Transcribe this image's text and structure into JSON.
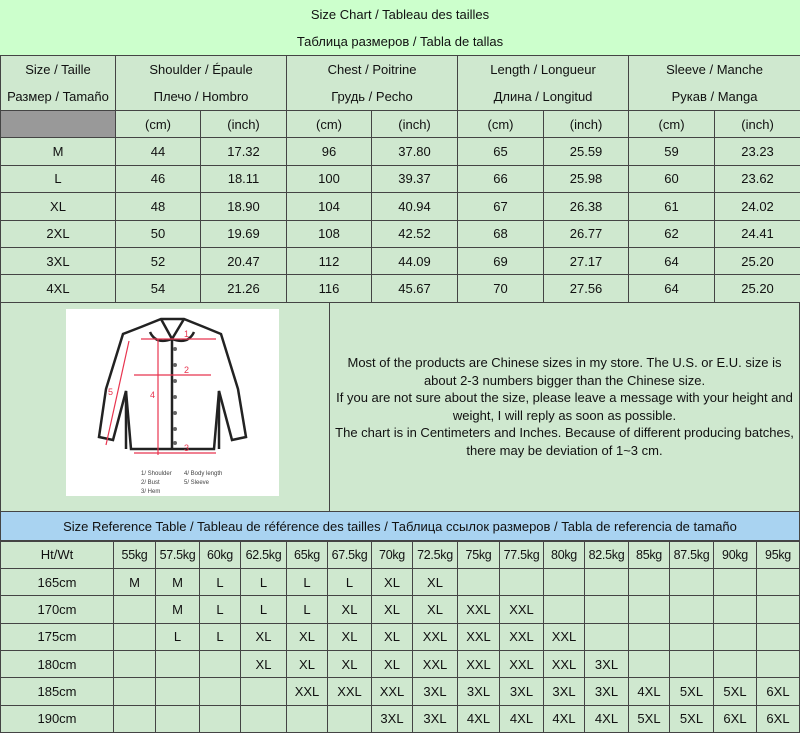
{
  "title": {
    "line1": "Size Chart / Tableau des tailles",
    "line2": "Таблица размеров / Tabla de tallas"
  },
  "headers": [
    {
      "l1": "Size / Taille",
      "l2": "Размер / Tamaño"
    },
    {
      "l1": "Shoulder / Épaule",
      "l2": "Плечо / Hombro"
    },
    {
      "l1": "Chest / Poitrine",
      "l2": "Грудь / Pecho"
    },
    {
      "l1": "Length / Longueur",
      "l2": "Длина / Longitud"
    },
    {
      "l1": "Sleeve / Manche",
      "l2": "Рукав / Manga"
    }
  ],
  "units": {
    "cm": "(cm)",
    "inch": "(inch)"
  },
  "size_rows": [
    [
      "M",
      "44",
      "17.32",
      "96",
      "37.80",
      "65",
      "25.59",
      "59",
      "23.23"
    ],
    [
      "L",
      "46",
      "18.11",
      "100",
      "39.37",
      "66",
      "25.98",
      "60",
      "23.62"
    ],
    [
      "XL",
      "48",
      "18.90",
      "104",
      "40.94",
      "67",
      "26.38",
      "61",
      "24.02"
    ],
    [
      "2XL",
      "50",
      "19.69",
      "108",
      "42.52",
      "68",
      "26.77",
      "62",
      "24.41"
    ],
    [
      "3XL",
      "52",
      "20.47",
      "112",
      "44.09",
      "69",
      "27.17",
      "64",
      "25.20"
    ],
    [
      "4XL",
      "54",
      "21.26",
      "116",
      "45.67",
      "70",
      "27.56",
      "64",
      "25.20"
    ]
  ],
  "diagram": {
    "labels": [
      "1/ Shoulder",
      "2/ Bust",
      "3/ Hem",
      "4/ Body length",
      "5/ Sleeve"
    ],
    "numbers": [
      "1",
      "2",
      "3",
      "4",
      "5"
    ],
    "accent": "#e8344f"
  },
  "description": [
    "Most of the products are Chinese sizes in my store. The U.S. or E.U. size is about 2-3 numbers bigger than the Chinese size.",
    "If you are not sure about the size, please leave a message with your height and weight, I will reply as soon as possible.",
    "The chart is in Centimeters and Inches. Because of different producing batches, there may be deviation of 1~3 cm."
  ],
  "reference": {
    "title": "Size Reference Table / Tableau de référence des tailles / Таблица ссылок размеров / Tabla de referencia de tamaño",
    "corner": "Ht/Wt",
    "weights": [
      "55kg",
      "57.5kg",
      "60kg",
      "62.5kg",
      "65kg",
      "67.5kg",
      "70kg",
      "72.5kg",
      "75kg",
      "77.5kg",
      "80kg",
      "82.5kg",
      "85kg",
      "87.5kg",
      "90kg",
      "95kg"
    ],
    "rows": [
      {
        "height": "165cm",
        "sizes": [
          "M",
          "M",
          "L",
          "L",
          "L",
          "L",
          "XL",
          "XL",
          "",
          "",
          "",
          "",
          "",
          "",
          "",
          ""
        ]
      },
      {
        "height": "170cm",
        "sizes": [
          "",
          "M",
          "L",
          "L",
          "L",
          "XL",
          "XL",
          "XL",
          "XXL",
          "XXL",
          "",
          "",
          "",
          "",
          "",
          ""
        ]
      },
      {
        "height": "175cm",
        "sizes": [
          "",
          "L",
          "L",
          "XL",
          "XL",
          "XL",
          "XL",
          "XXL",
          "XXL",
          "XXL",
          "XXL",
          "",
          "",
          "",
          "",
          ""
        ]
      },
      {
        "height": "180cm",
        "sizes": [
          "",
          "",
          "",
          "XL",
          "XL",
          "XL",
          "XL",
          "XXL",
          "XXL",
          "XXL",
          "XXL",
          "3XL",
          "",
          "",
          "",
          ""
        ]
      },
      {
        "height": "185cm",
        "sizes": [
          "",
          "",
          "",
          "",
          "XXL",
          "XXL",
          "XXL",
          "3XL",
          "3XL",
          "3XL",
          "3XL",
          "3XL",
          "4XL",
          "5XL",
          "5XL",
          "6XL"
        ]
      },
      {
        "height": "190cm",
        "sizes": [
          "",
          "",
          "",
          "",
          "",
          "",
          "3XL",
          "3XL",
          "4XL",
          "4XL",
          "4XL",
          "4XL",
          "5XL",
          "5XL",
          "6XL",
          "6XL"
        ]
      }
    ]
  },
  "colors": {
    "title_bg": "#ccffcc",
    "cell_bg": "#cfe8cf",
    "reference_header_bg": "#a9d3f1",
    "corner_cell": "#999999"
  }
}
